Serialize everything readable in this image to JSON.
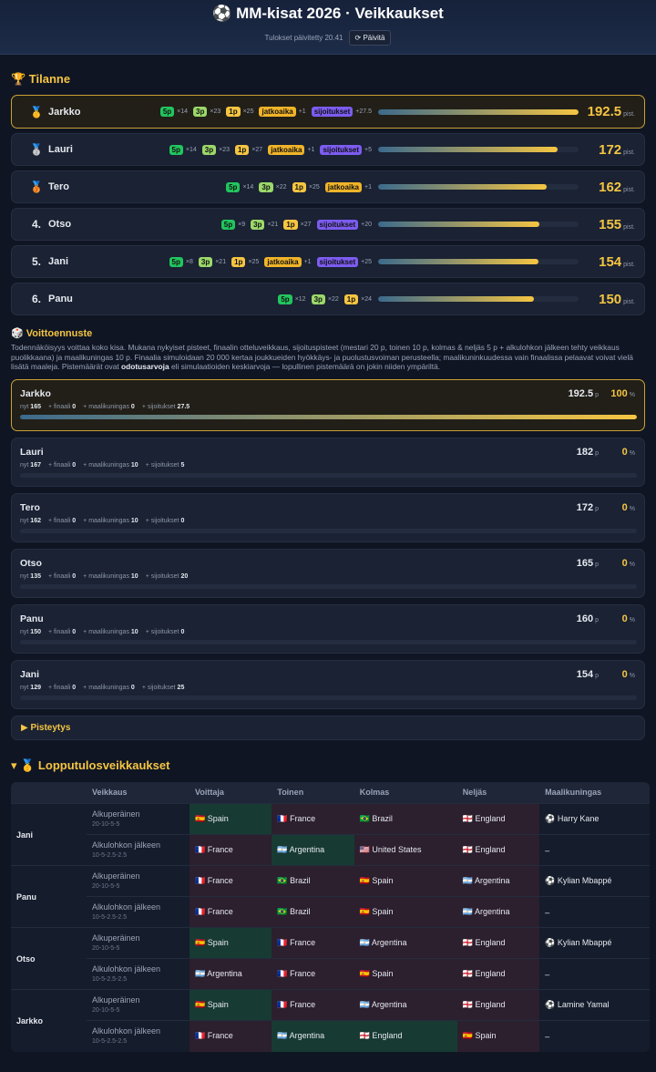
{
  "header": {
    "title": "⚽ MM-kisat 2026 · Veikkaukset",
    "updated": "Tulokset päivitetty 20.41",
    "refresh": "⟳ Päivitä"
  },
  "standings": {
    "title": "🏆 Tilanne",
    "unit": "pist.",
    "rows": [
      {
        "rank": "🥇",
        "name": "Jarkko",
        "points": 192.5,
        "badges": [
          {
            "label": "5p",
            "count": "×14",
            "color": "#22c55e"
          },
          {
            "label": "3p",
            "count": "×23",
            "color": "#9bd86a"
          },
          {
            "label": "1p",
            "count": "×25",
            "color": "#f5c542"
          },
          {
            "label": "jatkoaika",
            "count": "+1",
            "color": "#f0b429"
          },
          {
            "label": "sijoitukset",
            "count": "+27.5",
            "color": "#7c5cf0"
          }
        ]
      },
      {
        "rank": "🥈",
        "name": "Lauri",
        "points": 172,
        "badges": [
          {
            "label": "5p",
            "count": "×14",
            "color": "#22c55e"
          },
          {
            "label": "3p",
            "count": "×23",
            "color": "#9bd86a"
          },
          {
            "label": "1p",
            "count": "×27",
            "color": "#f5c542"
          },
          {
            "label": "jatkoaika",
            "count": "+1",
            "color": "#f0b429"
          },
          {
            "label": "sijoitukset",
            "count": "+5",
            "color": "#7c5cf0"
          }
        ]
      },
      {
        "rank": "🥉",
        "name": "Tero",
        "points": 162,
        "badges": [
          {
            "label": "5p",
            "count": "×14",
            "color": "#22c55e"
          },
          {
            "label": "3p",
            "count": "×22",
            "color": "#9bd86a"
          },
          {
            "label": "1p",
            "count": "×25",
            "color": "#f5c542"
          },
          {
            "label": "jatkoaika",
            "count": "+1",
            "color": "#f0b429"
          }
        ]
      },
      {
        "rank": "4.",
        "name": "Otso",
        "points": 155,
        "badges": [
          {
            "label": "5p",
            "count": "×9",
            "color": "#22c55e"
          },
          {
            "label": "3p",
            "count": "×21",
            "color": "#9bd86a"
          },
          {
            "label": "1p",
            "count": "×27",
            "color": "#f5c542"
          },
          {
            "label": "sijoitukset",
            "count": "+20",
            "color": "#7c5cf0"
          }
        ]
      },
      {
        "rank": "5.",
        "name": "Jani",
        "points": 154,
        "badges": [
          {
            "label": "5p",
            "count": "×8",
            "color": "#22c55e"
          },
          {
            "label": "3p",
            "count": "×21",
            "color": "#9bd86a"
          },
          {
            "label": "1p",
            "count": "×25",
            "color": "#f5c542"
          },
          {
            "label": "jatkoaika",
            "count": "+1",
            "color": "#f0b429"
          },
          {
            "label": "sijoitukset",
            "count": "+25",
            "color": "#7c5cf0"
          }
        ]
      },
      {
        "rank": "6.",
        "name": "Panu",
        "points": 150,
        "badges": [
          {
            "label": "5p",
            "count": "×12",
            "color": "#22c55e"
          },
          {
            "label": "3p",
            "count": "×22",
            "color": "#9bd86a"
          },
          {
            "label": "1p",
            "count": "×24",
            "color": "#f5c542"
          }
        ]
      }
    ]
  },
  "forecast": {
    "title": "🎲 Voittoennuste",
    "description": [
      "Todennäköisyys voittaa koko kisa. Mukana nykyiset pisteet, finaalin otteluveikkaus, sijoituspisteet (mestari 20 p, toinen 10 p, kolmas & neljäs 5 p + alkulohkon jälkeen tehty veikkaus puolikkaana) ja maalikuningas 10 p. Finaalia simuloidaan 20 000 kertaa joukkueiden hyökkäys- ja puolustusvoiman perusteella; maalikuninkuudessa vain finaalissa pelaavat voivat vielä lisätä maaleja. Pistemäärät ovat ",
      "odotusarvoja",
      " eli simulaatioiden keskiarvoja — lopullinen pistemäärä on jokin niiden ympäriltä."
    ],
    "points_unit": "p",
    "pct_unit": "%",
    "detail_labels": [
      "nyt",
      "+ finaali",
      "+ maalikuningas",
      "+ sijoitukset"
    ],
    "cards": [
      {
        "name": "Jarkko",
        "total": 192.5,
        "pct": 100,
        "details": [
          165,
          0,
          0,
          27.5
        ]
      },
      {
        "name": "Lauri",
        "total": 182,
        "pct": 0,
        "details": [
          167,
          0,
          10,
          5
        ]
      },
      {
        "name": "Tero",
        "total": 172,
        "pct": 0,
        "details": [
          162,
          0,
          10,
          0
        ]
      },
      {
        "name": "Otso",
        "total": 165,
        "pct": 0,
        "details": [
          135,
          0,
          10,
          20
        ]
      },
      {
        "name": "Panu",
        "total": 160,
        "pct": 0,
        "details": [
          150,
          0,
          10,
          0
        ]
      },
      {
        "name": "Jani",
        "total": 154,
        "pct": 0,
        "details": [
          129,
          0,
          0,
          25
        ]
      }
    ]
  },
  "scoring": {
    "label": "▶ Pisteytys"
  },
  "final_picks": {
    "title": "▾ 🥇 Lopputulosveikkaukset",
    "columns": [
      "Veikkaus",
      "Voittaja",
      "Toinen",
      "Kolmas",
      "Neljäs",
      "Maalikuningas"
    ],
    "groups": [
      {
        "name": "Jani",
        "picks": [
          {
            "variant": "Alkuperäinen",
            "scheme": "20-10-5-5",
            "cells": [
              {
                "text": "🇪🇸 Spain",
                "status": "hit"
              },
              {
                "text": "🇫🇷 France",
                "status": "miss"
              },
              {
                "text": "🇧🇷 Brazil",
                "status": "miss"
              },
              {
                "text": "🏴󠁧󠁢󠁥󠁮󠁧󠁿 England",
                "status": "miss"
              },
              {
                "text": "⚽ Harry Kane",
                "status": "none"
              }
            ]
          },
          {
            "variant": "Alkulohkon jälkeen",
            "scheme": "10-5-2.5-2.5",
            "cells": [
              {
                "text": "🇫🇷 France",
                "status": "miss"
              },
              {
                "text": "🇦🇷 Argentina",
                "status": "hit"
              },
              {
                "text": "🇺🇸 United States",
                "status": "miss"
              },
              {
                "text": "🏴󠁧󠁢󠁥󠁮󠁧󠁿 England",
                "status": "miss"
              },
              {
                "text": "–",
                "status": "none"
              }
            ]
          }
        ]
      },
      {
        "name": "Panu",
        "picks": [
          {
            "variant": "Alkuperäinen",
            "scheme": "20-10-5-5",
            "cells": [
              {
                "text": "🇫🇷 France",
                "status": "miss"
              },
              {
                "text": "🇧🇷 Brazil",
                "status": "miss"
              },
              {
                "text": "🇪🇸 Spain",
                "status": "miss"
              },
              {
                "text": "🇦🇷 Argentina",
                "status": "miss"
              },
              {
                "text": "⚽ Kylian Mbappé",
                "status": "none"
              }
            ]
          },
          {
            "variant": "Alkulohkon jälkeen",
            "scheme": "10-5-2.5-2.5",
            "cells": [
              {
                "text": "🇫🇷 France",
                "status": "miss"
              },
              {
                "text": "🇧🇷 Brazil",
                "status": "miss"
              },
              {
                "text": "🇪🇸 Spain",
                "status": "miss"
              },
              {
                "text": "🇦🇷 Argentina",
                "status": "miss"
              },
              {
                "text": "–",
                "status": "none"
              }
            ]
          }
        ]
      },
      {
        "name": "Otso",
        "picks": [
          {
            "variant": "Alkuperäinen",
            "scheme": "20-10-5-5",
            "cells": [
              {
                "text": "🇪🇸 Spain",
                "status": "hit"
              },
              {
                "text": "🇫🇷 France",
                "status": "miss"
              },
              {
                "text": "🇦🇷 Argentina",
                "status": "miss"
              },
              {
                "text": "🏴󠁧󠁢󠁥󠁮󠁧󠁿 England",
                "status": "miss"
              },
              {
                "text": "⚽ Kylian Mbappé",
                "status": "none"
              }
            ]
          },
          {
            "variant": "Alkulohkon jälkeen",
            "scheme": "10-5-2.5-2.5",
            "cells": [
              {
                "text": "🇦🇷 Argentina",
                "status": "miss"
              },
              {
                "text": "🇫🇷 France",
                "status": "miss"
              },
              {
                "text": "🇪🇸 Spain",
                "status": "miss"
              },
              {
                "text": "🏴󠁧󠁢󠁥󠁮󠁧󠁿 England",
                "status": "miss"
              },
              {
                "text": "–",
                "status": "none"
              }
            ]
          }
        ]
      },
      {
        "name": "Jarkko",
        "picks": [
          {
            "variant": "Alkuperäinen",
            "scheme": "20-10-5-5",
            "cells": [
              {
                "text": "🇪🇸 Spain",
                "status": "hit"
              },
              {
                "text": "🇫🇷 France",
                "status": "miss"
              },
              {
                "text": "🇦🇷 Argentina",
                "status": "miss"
              },
              {
                "text": "🏴󠁧󠁢󠁥󠁮󠁧󠁿 England",
                "status": "miss"
              },
              {
                "text": "⚽ Lamine Yamal",
                "status": "none"
              }
            ]
          },
          {
            "variant": "Alkulohkon jälkeen",
            "scheme": "10-5-2.5-2.5",
            "cells": [
              {
                "text": "🇫🇷 France",
                "status": "miss"
              },
              {
                "text": "🇦🇷 Argentina",
                "status": "hit"
              },
              {
                "text": "🏴󠁧󠁢󠁥󠁮󠁧󠁿 England",
                "status": "hit"
              },
              {
                "text": "🇪🇸 Spain",
                "status": "miss"
              },
              {
                "text": "–",
                "status": "none"
              }
            ]
          }
        ]
      }
    ]
  }
}
